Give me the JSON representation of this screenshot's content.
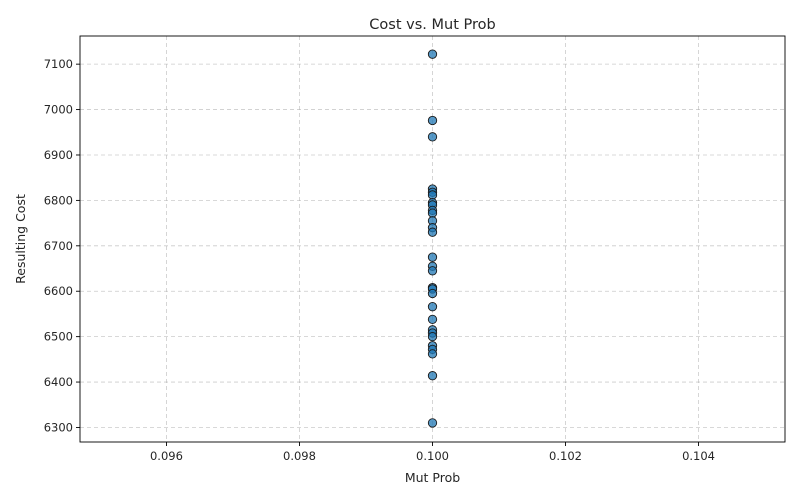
{
  "chart_data": {
    "type": "scatter",
    "title": "Cost vs. Mut Prob",
    "xlabel": "Mut Prob",
    "ylabel": "Resulting Cost",
    "xlim": [
      0.0947,
      0.1053
    ],
    "ylim": [
      6268,
      7162
    ],
    "xticks": [
      0.096,
      0.098,
      0.1,
      0.102,
      0.104
    ],
    "xtick_labels": [
      "0.096",
      "0.098",
      "0.100",
      "0.102",
      "0.104"
    ],
    "yticks": [
      6300,
      6400,
      6500,
      6600,
      6700,
      6800,
      6900,
      7000,
      7100
    ],
    "ytick_labels": [
      "6300",
      "6400",
      "6500",
      "6600",
      "6700",
      "6800",
      "6900",
      "7000",
      "7100"
    ],
    "grid": true,
    "marker_color": "#1f77b4",
    "marker_edge_color": "#1a1a1a",
    "points": [
      {
        "x": 0.1,
        "y": 7122
      },
      {
        "x": 0.1,
        "y": 6976
      },
      {
        "x": 0.1,
        "y": 6940
      },
      {
        "x": 0.1,
        "y": 6825
      },
      {
        "x": 0.1,
        "y": 6818
      },
      {
        "x": 0.1,
        "y": 6812
      },
      {
        "x": 0.1,
        "y": 6795
      },
      {
        "x": 0.1,
        "y": 6790
      },
      {
        "x": 0.1,
        "y": 6778
      },
      {
        "x": 0.1,
        "y": 6772
      },
      {
        "x": 0.1,
        "y": 6755
      },
      {
        "x": 0.1,
        "y": 6740
      },
      {
        "x": 0.1,
        "y": 6730
      },
      {
        "x": 0.1,
        "y": 6675
      },
      {
        "x": 0.1,
        "y": 6655
      },
      {
        "x": 0.1,
        "y": 6645
      },
      {
        "x": 0.1,
        "y": 6608
      },
      {
        "x": 0.1,
        "y": 6605
      },
      {
        "x": 0.1,
        "y": 6595
      },
      {
        "x": 0.1,
        "y": 6566
      },
      {
        "x": 0.1,
        "y": 6538
      },
      {
        "x": 0.1,
        "y": 6515
      },
      {
        "x": 0.1,
        "y": 6508
      },
      {
        "x": 0.1,
        "y": 6500
      },
      {
        "x": 0.1,
        "y": 6480
      },
      {
        "x": 0.1,
        "y": 6472
      },
      {
        "x": 0.1,
        "y": 6462
      },
      {
        "x": 0.1,
        "y": 6414
      },
      {
        "x": 0.1,
        "y": 6310
      }
    ]
  }
}
